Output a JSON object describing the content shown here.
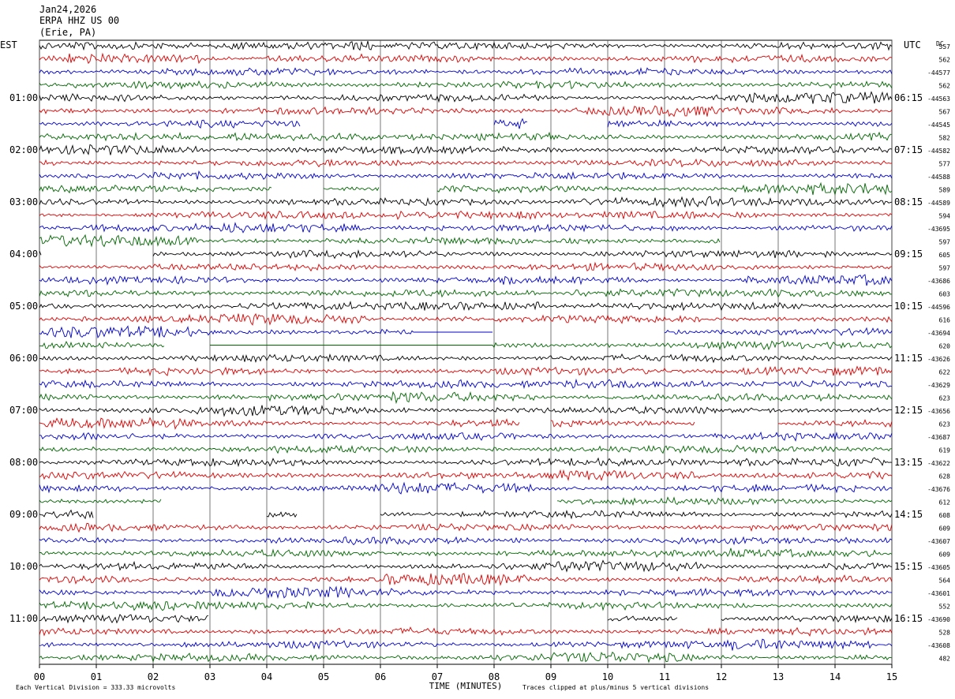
{
  "header": {
    "date": "Jan24,2026",
    "station": "ERPA HHZ US 00",
    "location": "(Erie, PA)",
    "left_tz": "EST",
    "right_tz": "UTC",
    "dc_label": "DC"
  },
  "footer": {
    "scale_note": "Each Vertical Division =  333.33 microvolts",
    "xlabel": "TIME (MINUTES)",
    "clip_note": "Traces clipped at plus/minus 5 vertical divisions"
  },
  "chart_data": {
    "type": "line",
    "title": "ERPA HHZ US 00",
    "xlabel": "TIME (MINUTES)",
    "xlim": [
      0,
      15
    ],
    "x_ticks": [
      "00",
      "01",
      "02",
      "03",
      "04",
      "05",
      "06",
      "07",
      "08",
      "09",
      "10",
      "11",
      "12",
      "13",
      "14",
      "15"
    ],
    "rows": 48,
    "trace_colors": [
      "#000000",
      "#dd0000",
      "#0000cc",
      "#006600"
    ],
    "left_labels": [
      {
        "row": 4,
        "text": "01:00"
      },
      {
        "row": 8,
        "text": "02:00"
      },
      {
        "row": 12,
        "text": "03:00"
      },
      {
        "row": 16,
        "text": "04:00"
      },
      {
        "row": 20,
        "text": "05:00"
      },
      {
        "row": 24,
        "text": "06:00"
      },
      {
        "row": 28,
        "text": "07:00"
      },
      {
        "row": 32,
        "text": "08:00"
      },
      {
        "row": 36,
        "text": "09:00"
      },
      {
        "row": 40,
        "text": "10:00"
      },
      {
        "row": 44,
        "text": "11:00"
      }
    ],
    "right_labels": [
      {
        "row": 4,
        "text": "06:15"
      },
      {
        "row": 8,
        "text": "07:15"
      },
      {
        "row": 12,
        "text": "08:15"
      },
      {
        "row": 16,
        "text": "09:15"
      },
      {
        "row": 20,
        "text": "10:15"
      },
      {
        "row": 24,
        "text": "11:15"
      },
      {
        "row": 28,
        "text": "12:15"
      },
      {
        "row": 32,
        "text": "13:15"
      },
      {
        "row": 36,
        "text": "14:15"
      },
      {
        "row": 40,
        "text": "15:15"
      },
      {
        "row": 44,
        "text": "16:15"
      }
    ],
    "dc_values": [
      "557",
      "562",
      "-44577",
      "562",
      "-44563",
      "567",
      "-44545",
      "582",
      "-44582",
      "577",
      "-44588",
      "589",
      "-44589",
      "594",
      "-43695",
      "597",
      "605",
      "597",
      "-43686",
      "603",
      "-44596",
      "616",
      "-43694",
      "620",
      "-43626",
      "622",
      "-43629",
      "623",
      "-43656",
      "623",
      "-43687",
      "619",
      "-43622",
      "628",
      "-43676",
      "612",
      "608",
      "609",
      "-43607",
      "609",
      "-43605",
      "564",
      "-43601",
      "552",
      "-43690",
      "528",
      "-43608",
      "482"
    ],
    "gaps": [
      {
        "row": 6,
        "from": 4.6,
        "to": 8.0
      },
      {
        "row": 6,
        "from": 8.6,
        "to": 10.0
      },
      {
        "row": 11,
        "from": 4.1,
        "to": 5.0
      },
      {
        "row": 11,
        "from": 6.0,
        "to": 7.0
      },
      {
        "row": 15,
        "from": 12.0,
        "to": 15.0
      },
      {
        "row": 16,
        "from": 0.05,
        "to": 2.0
      },
      {
        "row": 22,
        "from": 6.6,
        "to": 8.0,
        "flat": true
      },
      {
        "row": 22,
        "from": 8.0,
        "to": 11.0
      },
      {
        "row": 23,
        "from": 2.2,
        "to": 3.0
      },
      {
        "row": 23,
        "from": 3.0,
        "to": 8.0,
        "flat": true
      },
      {
        "row": 29,
        "from": 8.45,
        "to": 9.0
      },
      {
        "row": 29,
        "from": 11.55,
        "to": 13.0
      },
      {
        "row": 35,
        "from": 2.15,
        "to": 9.1
      },
      {
        "row": 36,
        "from": 0.95,
        "to": 4.0
      },
      {
        "row": 36,
        "from": 4.55,
        "to": 6.0
      },
      {
        "row": 44,
        "from": 3.0,
        "to": 10.0
      },
      {
        "row": 44,
        "from": 11.25,
        "to": 12.0
      }
    ]
  }
}
